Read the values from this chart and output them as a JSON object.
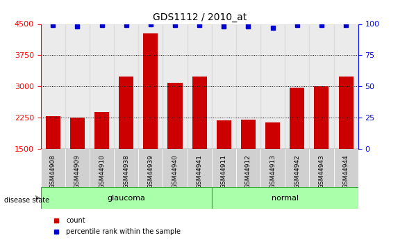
{
  "title": "GDS1112 / 2010_at",
  "categories": [
    "GSM44908",
    "GSM44909",
    "GSM44910",
    "GSM44938",
    "GSM44939",
    "GSM44940",
    "GSM44941",
    "GSM44911",
    "GSM44912",
    "GSM44913",
    "GSM44942",
    "GSM44943",
    "GSM44944"
  ],
  "bar_values": [
    2280,
    2255,
    2380,
    3230,
    4280,
    3080,
    3230,
    2180,
    2200,
    2130,
    2970,
    3000,
    3230
  ],
  "percentile_values": [
    99,
    98,
    99,
    99,
    100,
    99,
    99,
    98,
    98,
    97,
    99,
    99,
    99
  ],
  "bar_color": "#cc0000",
  "dot_color": "#0000cc",
  "ylim_left": [
    1500,
    4500
  ],
  "ylim_right": [
    0,
    100
  ],
  "yticks_left": [
    1500,
    2250,
    3000,
    3750,
    4500
  ],
  "yticks_right": [
    0,
    25,
    50,
    75,
    100
  ],
  "groups": [
    {
      "label": "glaucoma",
      "start": 0,
      "end": 6
    },
    {
      "label": "normal",
      "start": 7,
      "end": 12
    }
  ],
  "group_colors": [
    "#ccffcc",
    "#99ee99"
  ],
  "disease_state_label": "disease state",
  "legend_count_label": "count",
  "legend_percentile_label": "percentile rank within the sample",
  "bar_width": 0.6,
  "background_color": "#ffffff",
  "tick_label_bg": "#e0e0e0"
}
